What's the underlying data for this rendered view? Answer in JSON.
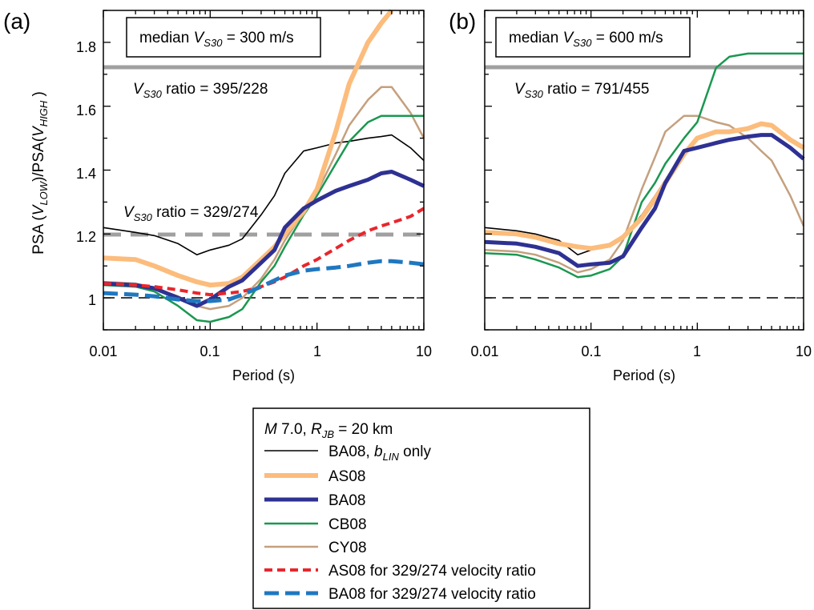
{
  "figure": {
    "ylabel": {
      "pre": "PSA (",
      "v1": "V",
      "s1": "LOW",
      "mid": ")/PSA(",
      "v2": "V",
      "s2": "HIGH",
      "post": " )"
    },
    "xlabel": "Period (s)",
    "panels": [
      {
        "label": "(a)",
        "box_pre": "median ",
        "box_v": "V",
        "box_sub": "S30",
        "box_post": " = 300 m/s",
        "ratio_top": {
          "v": "V",
          "sub": "S30",
          "text": " ratio = 395/228"
        },
        "ratio_mid": {
          "v": "V",
          "sub": "S30",
          "text": " ratio = 329/274"
        }
      },
      {
        "label": "(b)",
        "box_pre": "median ",
        "box_v": "V",
        "box_sub": "S30",
        "box_post": " = 600 m/s",
        "ratio_top": {
          "v": "V",
          "sub": "S30",
          "text": " ratio = 791/455"
        }
      }
    ],
    "legend": {
      "title": {
        "m": "M",
        "m_val": " 7.0, ",
        "r": "R",
        "r_sub": "JB",
        "r_val": " = 20 km"
      },
      "ba08_blin": {
        "pre": "BA08, ",
        "b": "b",
        "b_sub": "LIN",
        "post": " only"
      },
      "items": [
        "AS08",
        "BA08",
        "CB08",
        "CY08",
        "AS08 for 329/274 velocity ratio",
        "BA08 for 329/274 velocity ratio"
      ]
    }
  },
  "chart_data": [
    {
      "type": "line",
      "panel": "(a)",
      "xscale": "log",
      "xlim": [
        0.01,
        10
      ],
      "ylim": [
        0.9,
        1.9
      ],
      "xticks": [
        "0.01",
        "0.1",
        "1",
        "10"
      ],
      "yticks": [
        "1",
        "1.2",
        "1.4",
        "1.6",
        "1.8"
      ],
      "hlines": [
        {
          "y": 1.73,
          "style": "solid gray"
        },
        {
          "y": 1.2,
          "style": "dashed gray"
        },
        {
          "y": 1.0,
          "style": "dashed black"
        }
      ],
      "series": [
        {
          "name": "BA08, bLIN only",
          "color": "#000000",
          "x": [
            0.01,
            0.02,
            0.03,
            0.05,
            0.075,
            0.1,
            0.15,
            0.2,
            0.3,
            0.4,
            0.5,
            0.75,
            1,
            1.5,
            2,
            3,
            4,
            5,
            7.5,
            10
          ],
          "y": [
            1.22,
            1.205,
            1.195,
            1.17,
            1.135,
            1.15,
            1.165,
            1.185,
            1.26,
            1.32,
            1.39,
            1.46,
            1.47,
            1.485,
            1.49,
            1.5,
            1.505,
            1.51,
            1.47,
            1.43
          ]
        },
        {
          "name": "AS08",
          "color": "#fcbc7c",
          "x": [
            0.01,
            0.02,
            0.03,
            0.05,
            0.075,
            0.1,
            0.15,
            0.2,
            0.3,
            0.4,
            0.5,
            0.75,
            1,
            1.5,
            2,
            3,
            4,
            5
          ],
          "y": [
            1.125,
            1.12,
            1.1,
            1.07,
            1.05,
            1.04,
            1.045,
            1.065,
            1.12,
            1.16,
            1.2,
            1.27,
            1.34,
            1.52,
            1.67,
            1.8,
            1.86,
            1.9
          ]
        },
        {
          "name": "BA08",
          "color": "#2e3192",
          "x": [
            0.01,
            0.02,
            0.03,
            0.05,
            0.075,
            0.1,
            0.15,
            0.2,
            0.3,
            0.4,
            0.5,
            0.75,
            1,
            1.5,
            2,
            3,
            4,
            5,
            7.5,
            10
          ],
          "y": [
            1.045,
            1.04,
            1.03,
            1.0,
            0.975,
            0.995,
            1.035,
            1.055,
            1.11,
            1.15,
            1.22,
            1.28,
            1.305,
            1.335,
            1.35,
            1.37,
            1.39,
            1.395,
            1.37,
            1.35
          ]
        },
        {
          "name": "CB08",
          "color": "#1a9850",
          "x": [
            0.01,
            0.02,
            0.03,
            0.05,
            0.075,
            0.1,
            0.15,
            0.2,
            0.3,
            0.4,
            0.5,
            0.75,
            1,
            1.5,
            2,
            3,
            4,
            5,
            7.5,
            10
          ],
          "y": [
            1.04,
            1.035,
            1.02,
            0.975,
            0.93,
            0.925,
            0.94,
            0.965,
            1.05,
            1.1,
            1.16,
            1.26,
            1.32,
            1.42,
            1.49,
            1.55,
            1.57,
            1.57,
            1.57,
            1.57
          ]
        },
        {
          "name": "CY08",
          "color": "#c4a07e",
          "x": [
            0.01,
            0.02,
            0.03,
            0.05,
            0.075,
            0.1,
            0.15,
            0.2,
            0.3,
            0.4,
            0.5,
            0.75,
            1,
            1.5,
            2,
            3,
            4,
            5,
            7.5,
            10
          ],
          "y": [
            1.05,
            1.045,
            1.03,
            1.005,
            0.975,
            0.965,
            0.975,
            1.0,
            1.06,
            1.12,
            1.18,
            1.27,
            1.33,
            1.45,
            1.54,
            1.62,
            1.66,
            1.66,
            1.58,
            1.5
          ]
        },
        {
          "name": "AS08 for 329/274 velocity ratio",
          "color": "#e8262c",
          "x": [
            0.01,
            0.02,
            0.03,
            0.05,
            0.075,
            0.1,
            0.15,
            0.2,
            0.3,
            0.4,
            0.5,
            0.75,
            1,
            1.5,
            2,
            3,
            4,
            5,
            7.5,
            10
          ],
          "y": [
            1.045,
            1.04,
            1.035,
            1.025,
            1.015,
            1.01,
            1.015,
            1.02,
            1.035,
            1.05,
            1.065,
            1.1,
            1.12,
            1.155,
            1.18,
            1.21,
            1.225,
            1.235,
            1.255,
            1.28
          ]
        },
        {
          "name": "BA08 for 329/274 velocity ratio",
          "color": "#1f78c0",
          "x": [
            0.01,
            0.02,
            0.03,
            0.05,
            0.075,
            0.1,
            0.15,
            0.2,
            0.3,
            0.4,
            0.5,
            0.75,
            1,
            1.5,
            2,
            3,
            4,
            5,
            7.5,
            10
          ],
          "y": [
            1.015,
            1.01,
            1.005,
            0.995,
            0.99,
            0.99,
            0.995,
            1.01,
            1.035,
            1.055,
            1.07,
            1.085,
            1.09,
            1.095,
            1.1,
            1.11,
            1.115,
            1.115,
            1.11,
            1.105
          ]
        }
      ]
    },
    {
      "type": "line",
      "panel": "(b)",
      "xscale": "log",
      "xlim": [
        0.01,
        10
      ],
      "ylim": [
        0.9,
        1.9
      ],
      "xticks": [
        "0.01",
        "0.1",
        "1",
        "10"
      ],
      "hlines": [
        {
          "y": 1.73,
          "style": "solid gray"
        },
        {
          "y": 1.0,
          "style": "dashed black"
        }
      ],
      "series": [
        {
          "name": "BA08, bLIN only",
          "color": "#000000",
          "x": [
            0.01,
            0.02,
            0.03,
            0.05,
            0.075,
            0.1,
            0.15,
            0.2,
            0.3,
            0.4,
            0.5,
            0.75,
            1,
            1.5,
            2,
            3,
            4,
            5,
            7.5,
            10
          ],
          "y": [
            1.22,
            1.21,
            1.2,
            1.18,
            1.135,
            1.15,
            1.16,
            1.19,
            1.26,
            1.32,
            1.37,
            1.46,
            1.47,
            1.485,
            1.495,
            1.505,
            1.51,
            1.51,
            1.47,
            1.44
          ]
        },
        {
          "name": "AS08",
          "color": "#fcbc7c",
          "x": [
            0.01,
            0.02,
            0.03,
            0.05,
            0.075,
            0.1,
            0.15,
            0.2,
            0.3,
            0.4,
            0.5,
            0.75,
            1,
            1.5,
            2,
            3,
            4,
            5,
            7.5,
            10
          ],
          "y": [
            1.205,
            1.2,
            1.19,
            1.17,
            1.16,
            1.155,
            1.165,
            1.19,
            1.25,
            1.31,
            1.36,
            1.45,
            1.5,
            1.52,
            1.52,
            1.53,
            1.545,
            1.54,
            1.495,
            1.47
          ]
        },
        {
          "name": "BA08",
          "color": "#2e3192",
          "x": [
            0.01,
            0.02,
            0.03,
            0.05,
            0.075,
            0.1,
            0.15,
            0.2,
            0.3,
            0.4,
            0.5,
            0.75,
            1,
            1.5,
            2,
            3,
            4,
            5,
            7.5,
            10
          ],
          "y": [
            1.175,
            1.17,
            1.16,
            1.14,
            1.1,
            1.105,
            1.11,
            1.13,
            1.22,
            1.28,
            1.36,
            1.46,
            1.47,
            1.485,
            1.495,
            1.505,
            1.51,
            1.51,
            1.47,
            1.435
          ]
        },
        {
          "name": "CB08",
          "color": "#1a9850",
          "x": [
            0.01,
            0.02,
            0.03,
            0.05,
            0.075,
            0.1,
            0.15,
            0.2,
            0.3,
            0.4,
            0.5,
            0.75,
            1,
            1.5,
            2,
            3,
            4,
            5,
            7.5,
            10
          ],
          "y": [
            1.14,
            1.135,
            1.12,
            1.095,
            1.065,
            1.07,
            1.09,
            1.13,
            1.3,
            1.36,
            1.42,
            1.5,
            1.55,
            1.72,
            1.755,
            1.765,
            1.765,
            1.765,
            1.765,
            1.765
          ]
        },
        {
          "name": "CY08",
          "color": "#c4a07e",
          "x": [
            0.01,
            0.02,
            0.03,
            0.05,
            0.075,
            0.1,
            0.15,
            0.2,
            0.3,
            0.4,
            0.5,
            0.75,
            1,
            1.5,
            2,
            3,
            4,
            5,
            7.5,
            10
          ],
          "y": [
            1.15,
            1.145,
            1.135,
            1.11,
            1.08,
            1.09,
            1.12,
            1.18,
            1.34,
            1.44,
            1.52,
            1.57,
            1.57,
            1.55,
            1.54,
            1.5,
            1.46,
            1.43,
            1.32,
            1.225
          ]
        }
      ]
    }
  ]
}
